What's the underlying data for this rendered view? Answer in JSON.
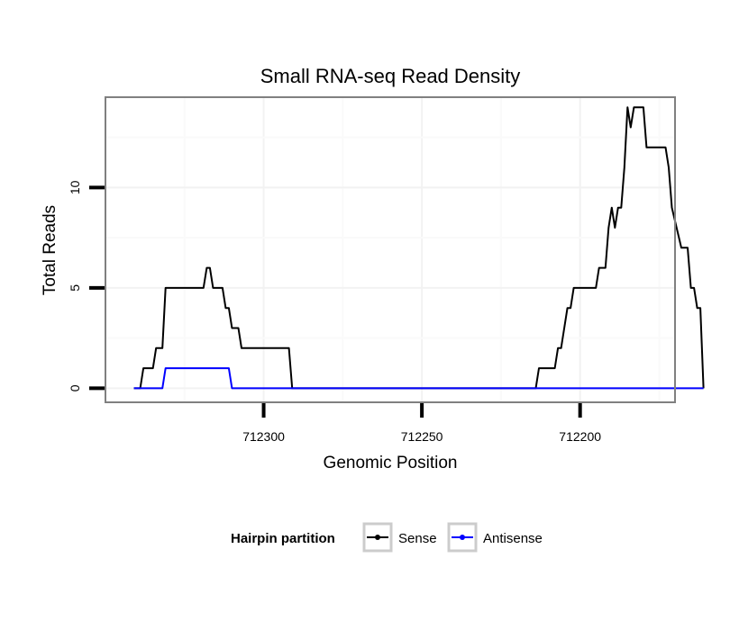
{
  "chart_data": {
    "type": "line",
    "title": "Small RNA-seq Read Density",
    "xlabel": "Genomic Position",
    "ylabel": "Total Reads",
    "xlim": [
      712350,
      712170
    ],
    "ylim": [
      -0.7,
      14.5
    ],
    "x_reversed": true,
    "x_ticks": [
      712300,
      712250,
      712200
    ],
    "x_tick_labels": [
      "712300",
      "712250",
      "712200"
    ],
    "y_ticks": [
      0,
      5,
      10
    ],
    "y_tick_labels": [
      "0",
      "5",
      "10"
    ],
    "grid": true,
    "legend": {
      "title": "Hairpin partition",
      "position": "bottom",
      "entries": [
        "Sense",
        "Antisense"
      ]
    },
    "series": [
      {
        "name": "Sense",
        "color": "#000000",
        "points": [
          [
            712341,
            0
          ],
          [
            712339,
            0
          ],
          [
            712338,
            1
          ],
          [
            712335,
            1
          ],
          [
            712334,
            2
          ],
          [
            712332,
            2
          ],
          [
            712331,
            5
          ],
          [
            712319,
            5
          ],
          [
            712318,
            6
          ],
          [
            712317,
            6
          ],
          [
            712316,
            5
          ],
          [
            712313,
            5
          ],
          [
            712312,
            4
          ],
          [
            712311,
            4
          ],
          [
            712310,
            3
          ],
          [
            712308,
            3
          ],
          [
            712307,
            2
          ],
          [
            712292,
            2
          ],
          [
            712291,
            0
          ],
          [
            712273,
            0
          ],
          [
            712214,
            0
          ],
          [
            712213,
            1
          ],
          [
            712208,
            1
          ],
          [
            712207,
            2
          ],
          [
            712206,
            2
          ],
          [
            712205,
            3
          ],
          [
            712204,
            4
          ],
          [
            712203,
            4
          ],
          [
            712202,
            5
          ],
          [
            712195,
            5
          ],
          [
            712194,
            6
          ],
          [
            712192,
            6
          ],
          [
            712191,
            8
          ],
          [
            712190,
            9
          ],
          [
            712189,
            8
          ],
          [
            712188,
            9
          ],
          [
            712187,
            9
          ],
          [
            712186,
            11
          ],
          [
            712185,
            14
          ],
          [
            712184,
            13
          ],
          [
            712183,
            14
          ],
          [
            712180,
            14
          ],
          [
            712179,
            12
          ],
          [
            712173,
            12
          ],
          [
            712172,
            11
          ],
          [
            712171,
            9
          ],
          [
            712168,
            7
          ],
          [
            712166,
            7
          ],
          [
            712165,
            5
          ],
          [
            712164,
            5
          ],
          [
            712163,
            4
          ],
          [
            712162,
            4
          ],
          [
            712161,
            0
          ]
        ]
      },
      {
        "name": "Antisense",
        "color": "#0000ff",
        "points": [
          [
            712341,
            0
          ],
          [
            712332,
            0
          ],
          [
            712331,
            1
          ],
          [
            712311,
            1
          ],
          [
            712310,
            0
          ],
          [
            712161,
            0
          ]
        ]
      }
    ]
  }
}
